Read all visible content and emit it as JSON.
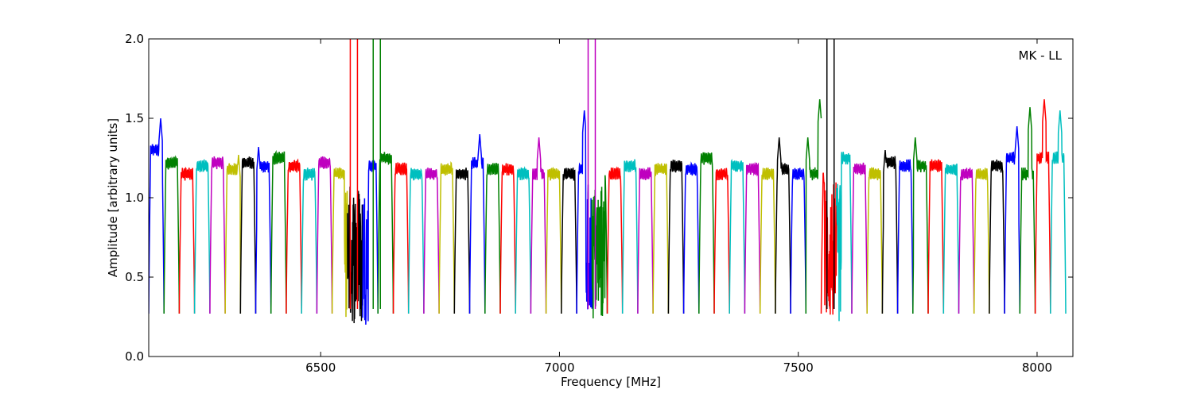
{
  "chart_data": {
    "type": "line",
    "annotation": "MK - LL",
    "xlabel": "Frequency [MHz]",
    "ylabel": "Amplitude [arbitrary units]",
    "xlim": [
      6140,
      8075
    ],
    "ylim": [
      0.0,
      2.0
    ],
    "xticks": [
      6500,
      7000,
      7500,
      8000
    ],
    "xtick_labels": [
      "6500",
      "7000",
      "7500",
      "8000"
    ],
    "yticks": [
      0.0,
      0.5,
      1.0,
      1.5,
      2.0
    ],
    "ytick_labels": [
      "0.0",
      "0.5",
      "1.0",
      "1.5",
      "2.0"
    ],
    "grid": false,
    "legend": "none",
    "color_cycle": [
      "#0000ff",
      "#008000",
      "#ff0000",
      "#00bfbf",
      "#bf00bf",
      "#bfbf00",
      "#000000"
    ],
    "channel_width_mhz": 32,
    "channel_start_mhz": 6140,
    "channel_count": 60,
    "channel_levels": [
      1.3,
      1.22,
      1.15,
      1.2,
      1.22,
      1.18,
      1.22,
      1.2,
      1.25,
      1.2,
      1.15,
      1.22,
      1.15,
      1.18,
      1.2,
      1.25,
      1.18,
      1.15,
      1.15,
      1.18,
      1.15,
      1.22,
      1.18,
      1.18,
      1.15,
      1.15,
      1.15,
      1.15,
      1.18,
      1.15,
      1.15,
      1.2,
      1.15,
      1.18,
      1.2,
      1.18,
      1.25,
      1.15,
      1.2,
      1.18,
      1.15,
      1.18,
      1.15,
      1.15,
      1.12,
      1.25,
      1.18,
      1.15,
      1.22,
      1.2,
      1.2,
      1.2,
      1.18,
      1.15,
      1.15,
      1.2,
      1.25,
      1.15,
      1.25,
      1.25
    ],
    "peaks_mhz": [
      6165,
      6328,
      6370,
      6833,
      6957,
      7052,
      7460,
      7520,
      7545,
      7682,
      7745,
      7958,
      7985,
      8015,
      8048
    ],
    "peak_values": [
      1.5,
      1.27,
      1.32,
      1.4,
      1.38,
      1.55,
      1.38,
      1.38,
      1.62,
      1.3,
      1.38,
      1.45,
      1.57,
      1.62,
      1.55
    ],
    "rfi_spikes_mhz": [
      [
        6562,
        6577
      ],
      [
        6610,
        6625
      ],
      [
        7060,
        7075
      ],
      [
        7560,
        7575
      ]
    ],
    "rfi_noise_regions_mhz": [
      [
        6550,
        6600
      ],
      [
        7055,
        7095
      ],
      [
        7555,
        7590
      ]
    ],
    "dip_minimum": 0.27
  }
}
